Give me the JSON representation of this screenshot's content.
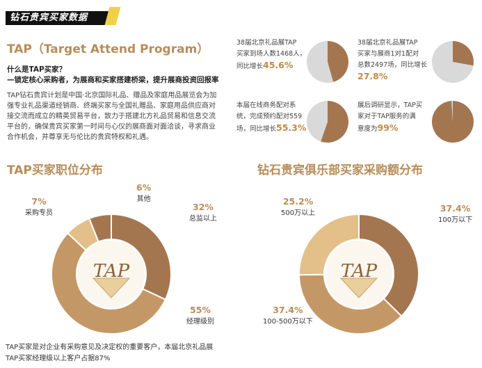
{
  "banner": {
    "title": "钻石贵宾买家数据"
  },
  "tap": {
    "heading": "TAP（Target Attend Program）",
    "question": "什么是TAP买家？",
    "answer": "—锁定核心采购者，为展商和买家搭建桥梁，提升展商投资回报率",
    "desc_lines": [
      "TAP钻石贵宾计划是中国·北京国际礼品、赠品及家庭用品展览会为加",
      "强专业礼品渠道经销商、终端买家与全国礼赠品、家庭用品供应商对",
      "接交流而成立的精英贸易平台，致力于搭建北方礼品贸易和信息交流",
      "平台的，确保贵宾买家第一时间与心仪的展商面对面洽谈，寻求商业",
      "合作机会，并尊享无与伦比的贵宾特权和礼遇。"
    ]
  },
  "stats": [
    {
      "lines": [
        "38届北京礼品展TAP",
        "买家到场人数1468人，",
        "同比增长"
      ],
      "pct": "45.6%",
      "fraction": 0.456
    },
    {
      "lines": [
        "38届北京礼品展TAP",
        "买家与展商1对1配对",
        "总数2497场，同比增长"
      ],
      "pct": "27.8%",
      "fraction": 0.278
    },
    {
      "lines": [
        "本届在线商务配对系",
        "统，完成预约配对559",
        "场，同比增长"
      ],
      "pct": "55.3%",
      "fraction": 0.553
    },
    {
      "lines": [
        "展后调研显示，TAP买",
        "家对于TAP服务的满",
        "意度为"
      ],
      "pct": "99%",
      "fraction": 0.99
    }
  ],
  "chart_data": [
    {
      "type": "pie",
      "title": "TAP买家职位分布",
      "categories": [
        "总监以上",
        "经理级别",
        "采购专员",
        "其他"
      ],
      "values": [
        32,
        55,
        7,
        6
      ],
      "labels": [
        "32%",
        "55%",
        "7%",
        "6%"
      ]
    },
    {
      "type": "pie",
      "title": "钻石贵宾俱乐部买家采购额分布",
      "categories": [
        "100万以下",
        "100-500万以下",
        "500万以上"
      ],
      "values": [
        37.4,
        37.4,
        25.2
      ],
      "labels": [
        "37.4%",
        "37.4%",
        "25.2%"
      ]
    }
  ],
  "center_logo": "TAP",
  "colors": {
    "dark": "#a47650",
    "light": "#e3c089",
    "mid": "#c49866",
    "grey": "#d9d9d9",
    "accent_text": "#b78d5a"
  },
  "footer": {
    "line1": "TAP买家是对企业有采购意见及决定权的重要客户，本届北京礼品展",
    "line2": "TAP买家经理级以上客户占据87%"
  }
}
